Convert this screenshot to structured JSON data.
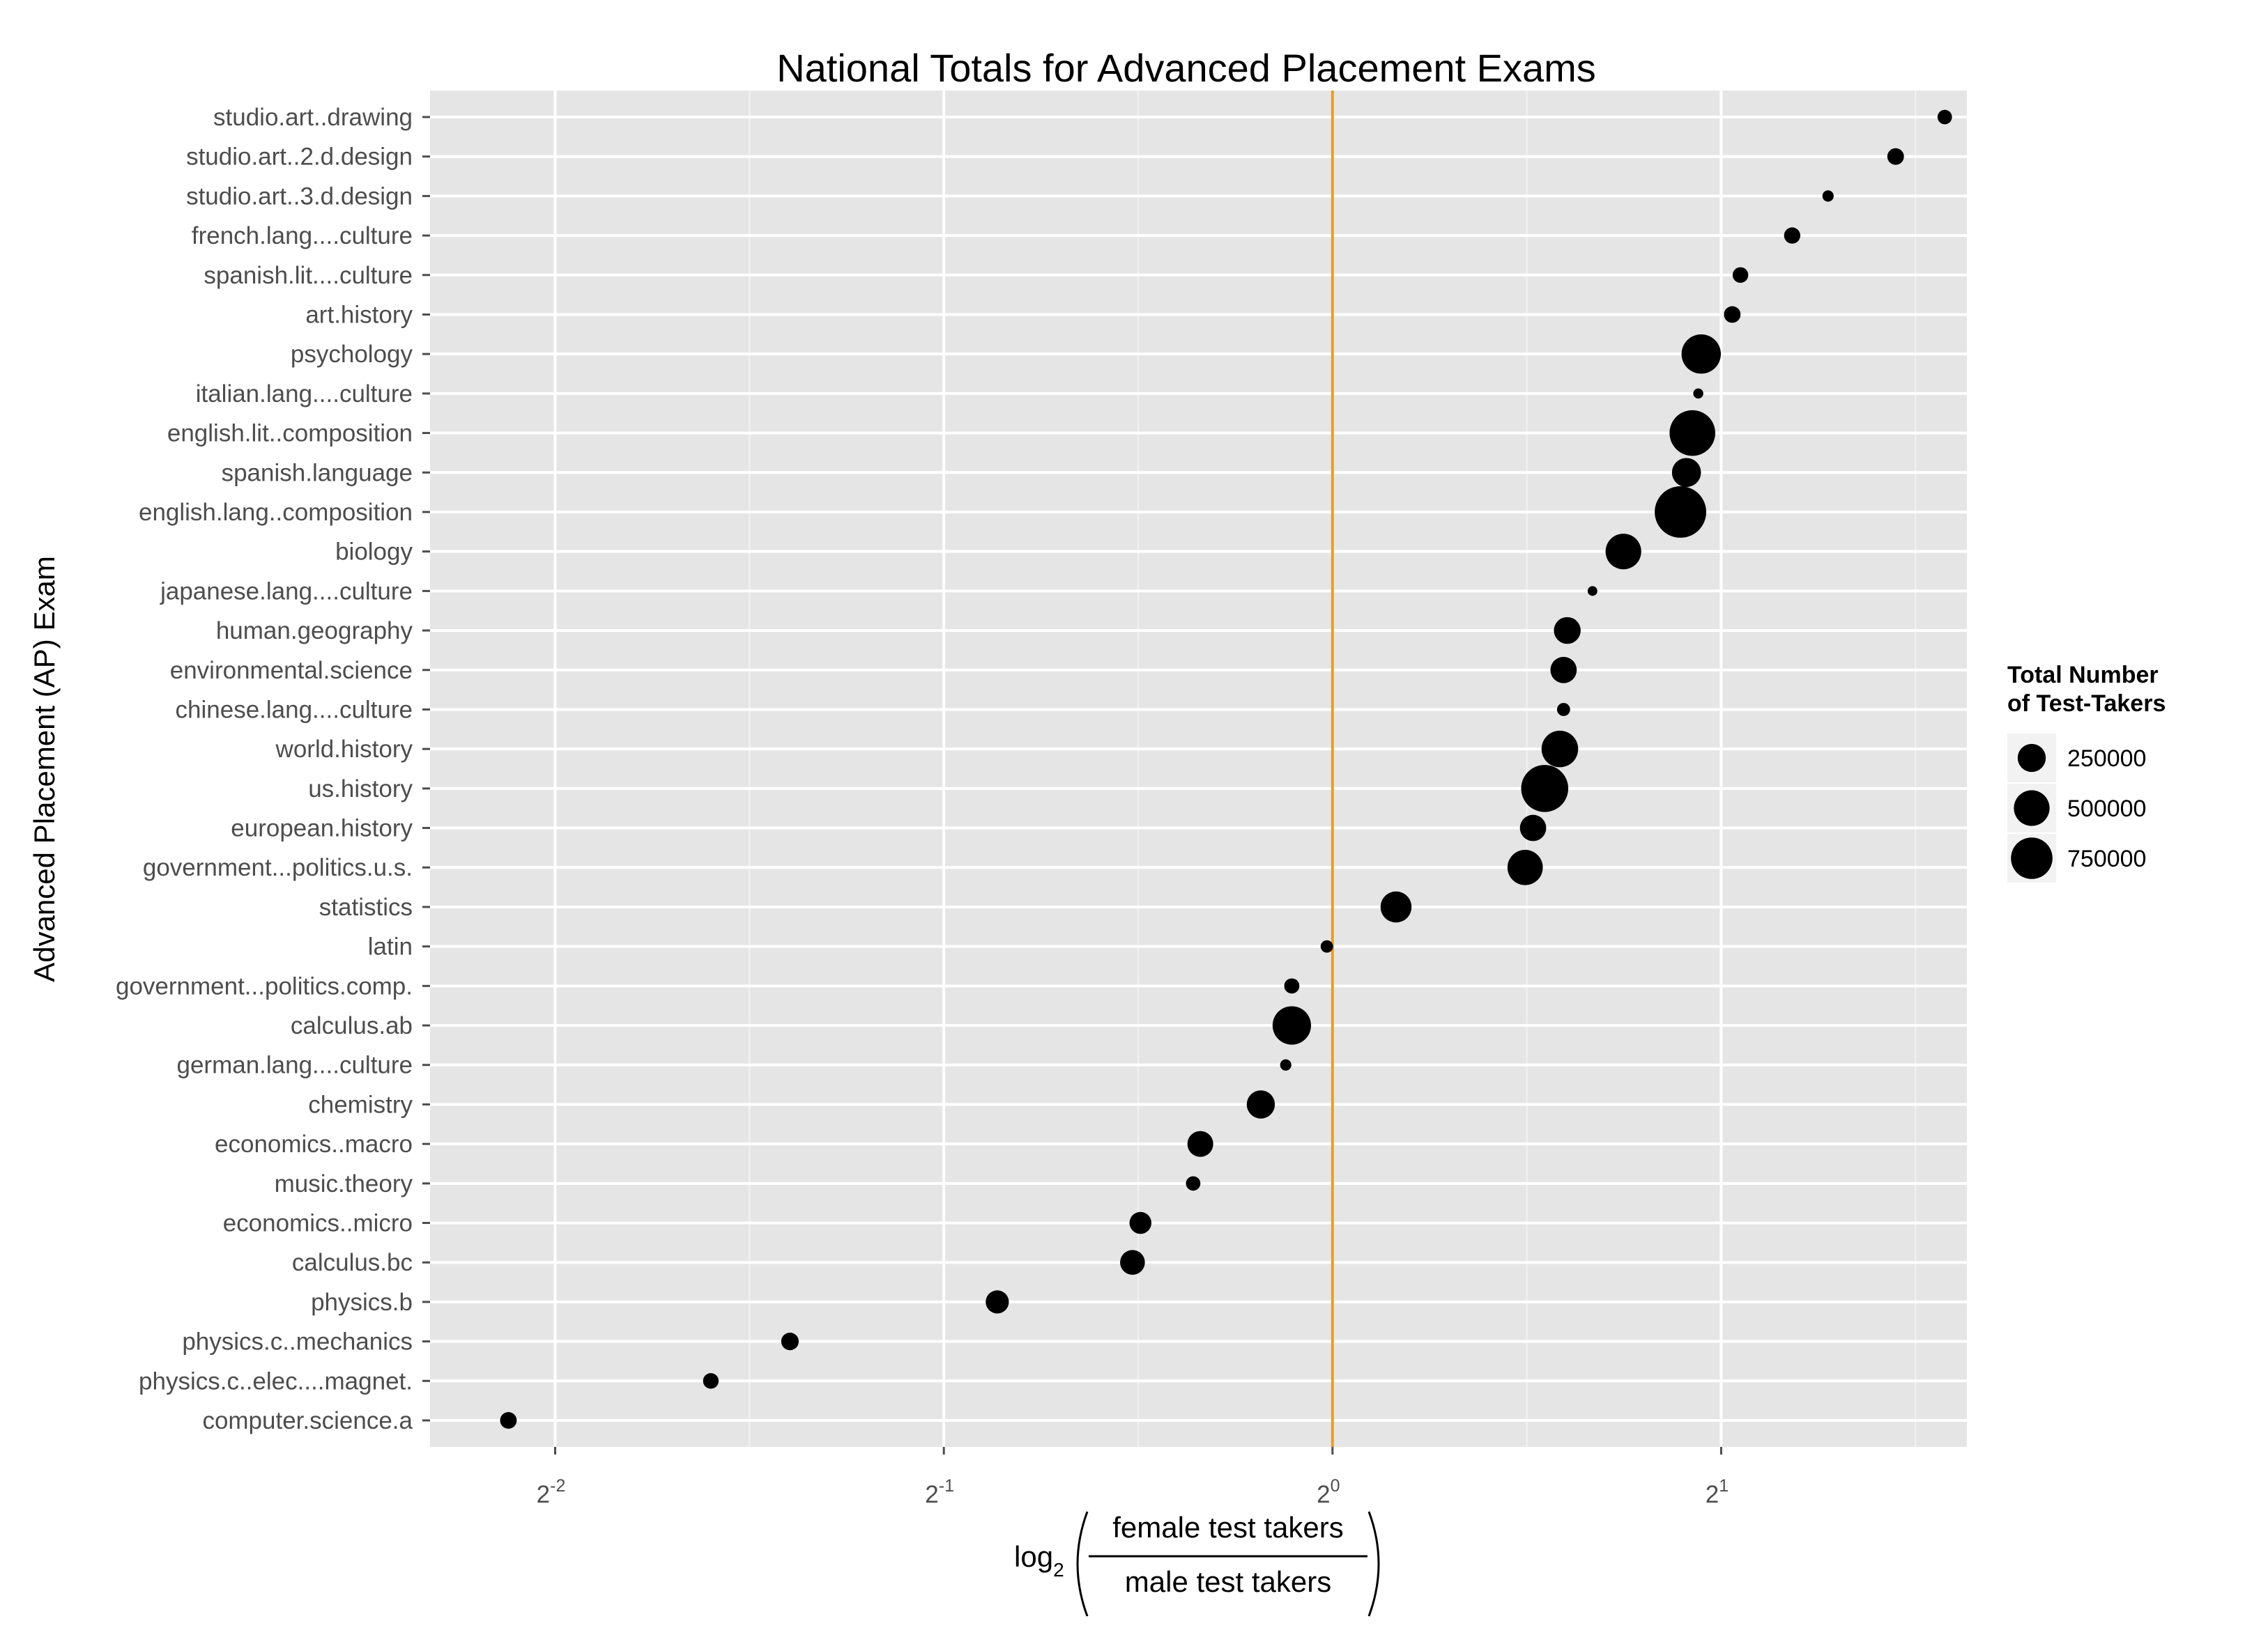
{
  "chart_data": {
    "type": "scatter",
    "title": "National Totals for Advanced Placement Exams",
    "ylabel": "Advanced Placement (AP) Exam",
    "xlabel": {
      "prefix": "log",
      "subscript": "2",
      "numerator": "female test takers",
      "denominator": "male test takers"
    },
    "x_scale": "log2",
    "xlim": [
      0.2,
      3.1
    ],
    "x_ticks": [
      {
        "value": 0.25,
        "base": "2",
        "exp": "-2"
      },
      {
        "value": 0.5,
        "base": "2",
        "exp": "-1"
      },
      {
        "value": 1,
        "base": "2",
        "exp": "0"
      },
      {
        "value": 2,
        "base": "2",
        "exp": "1"
      }
    ],
    "reference_line": {
      "x": 1,
      "color": "#f39c12"
    },
    "grid": true,
    "legend": {
      "title_lines": [
        "Total Number",
        "of Test-Takers"
      ],
      "position": "right",
      "entries": [
        {
          "label": "250000",
          "size": 250000
        },
        {
          "label": "500000",
          "size": 500000
        },
        {
          "label": "750000",
          "size": 750000
        }
      ]
    },
    "points": [
      {
        "exam": "studio.art..drawing",
        "ratio": 2.98,
        "total": 15000
      },
      {
        "exam": "studio.art..2.d.design",
        "ratio": 2.73,
        "total": 25000
      },
      {
        "exam": "studio.art..3.d.design",
        "ratio": 2.42,
        "total": 5000
      },
      {
        "exam": "french.lang....culture",
        "ratio": 2.27,
        "total": 23000
      },
      {
        "exam": "spanish.lit....culture",
        "ratio": 2.07,
        "total": 20000
      },
      {
        "exam": "art.history",
        "ratio": 2.04,
        "total": 25000
      },
      {
        "exam": "psychology",
        "ratio": 1.93,
        "total": 280000
      },
      {
        "exam": "italian.lang....culture",
        "ratio": 1.92,
        "total": 2500
      },
      {
        "exam": "english.lit..composition",
        "ratio": 1.9,
        "total": 400000
      },
      {
        "exam": "spanish.language",
        "ratio": 1.88,
        "total": 130000
      },
      {
        "exam": "english.lang..composition",
        "ratio": 1.86,
        "total": 530000
      },
      {
        "exam": "biology",
        "ratio": 1.68,
        "total": 220000
      },
      {
        "exam": "japanese.lang....culture",
        "ratio": 1.59,
        "total": 2000
      },
      {
        "exam": "human.geography",
        "ratio": 1.52,
        "total": 105000
      },
      {
        "exam": "environmental.science",
        "ratio": 1.51,
        "total": 100000
      },
      {
        "exam": "chinese.lang....culture",
        "ratio": 1.51,
        "total": 10000
      },
      {
        "exam": "world.history",
        "ratio": 1.5,
        "total": 235000
      },
      {
        "exam": "us.history",
        "ratio": 1.46,
        "total": 430000
      },
      {
        "exam": "european.history",
        "ratio": 1.43,
        "total": 100000
      },
      {
        "exam": "government...politics.u.s.",
        "ratio": 1.41,
        "total": 215000
      },
      {
        "exam": "statistics",
        "ratio": 1.12,
        "total": 155000
      },
      {
        "exam": "latin",
        "ratio": 0.99,
        "total": 8000
      },
      {
        "exam": "government...politics.comp.",
        "ratio": 0.93,
        "total": 18000
      },
      {
        "exam": "calculus.ab",
        "ratio": 0.93,
        "total": 265000
      },
      {
        "exam": "german.lang....culture",
        "ratio": 0.92,
        "total": 5000
      },
      {
        "exam": "chemistry",
        "ratio": 0.88,
        "total": 120000
      },
      {
        "exam": "economics..macro",
        "ratio": 0.79,
        "total": 95000
      },
      {
        "exam": "music.theory",
        "ratio": 0.78,
        "total": 15000
      },
      {
        "exam": "economics..micro",
        "ratio": 0.71,
        "total": 60000
      },
      {
        "exam": "calculus.bc",
        "ratio": 0.7,
        "total": 85000
      },
      {
        "exam": "physics.b",
        "ratio": 0.55,
        "total": 70000
      },
      {
        "exam": "physics.c..mechanics",
        "ratio": 0.38,
        "total": 30000
      },
      {
        "exam": "physics.c..elec....magnet.",
        "ratio": 0.33,
        "total": 20000
      },
      {
        "exam": "computer.science.a",
        "ratio": 0.23,
        "total": 25000
      }
    ]
  }
}
